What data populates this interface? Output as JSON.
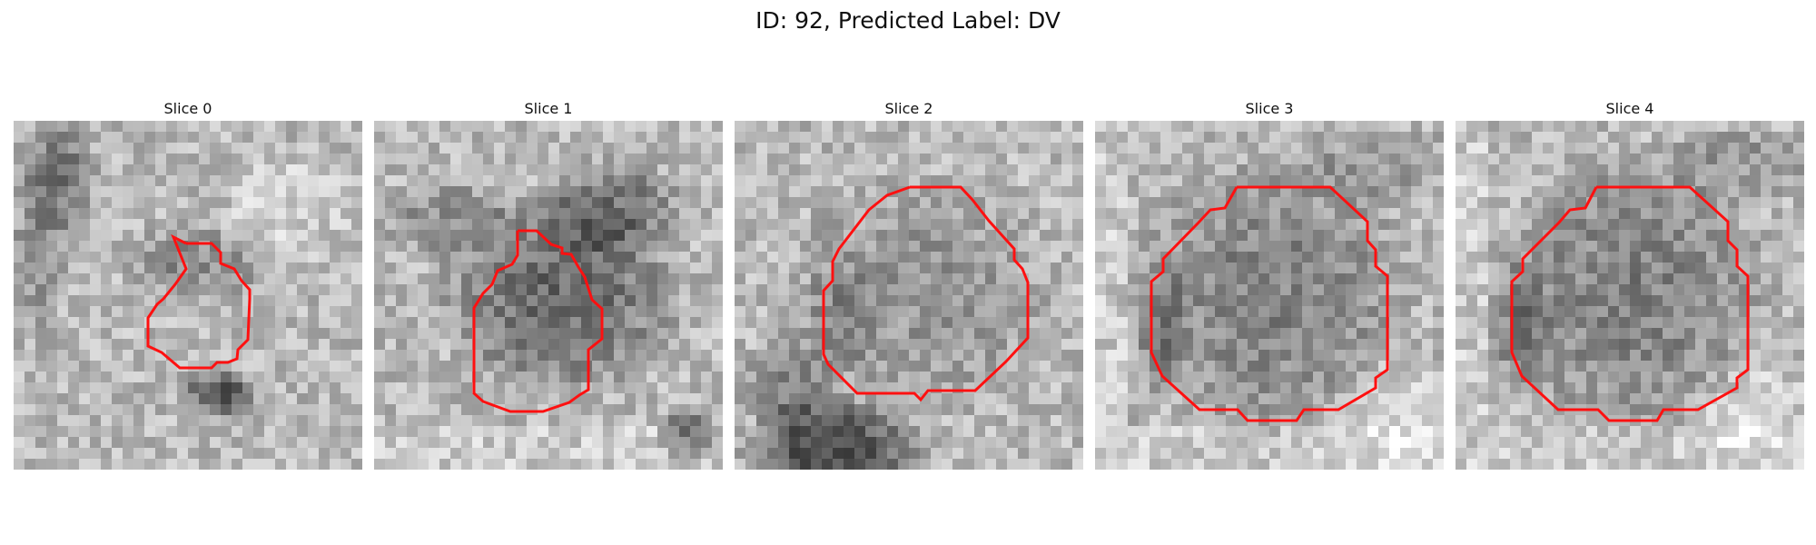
{
  "figure": {
    "title": "ID: 92, Predicted Label: DV"
  },
  "panels": [
    {
      "title": "Slice 0"
    },
    {
      "title": "Slice 1"
    },
    {
      "title": "Slice 2"
    },
    {
      "title": "Slice 3"
    },
    {
      "title": "Slice 4"
    }
  ],
  "colors": {
    "contour": "#ff1010",
    "background": "#ffffff"
  }
}
